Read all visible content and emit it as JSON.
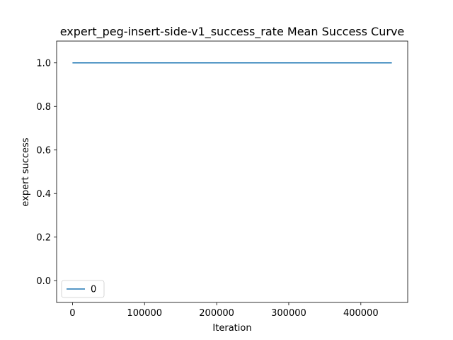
{
  "chart_data": {
    "type": "line",
    "title": "expert_peg-insert-side-v1_success_rate Mean Success Curve",
    "xlabel": "Iteration",
    "ylabel": "expert success",
    "xlim": [
      -22000,
      465000
    ],
    "ylim": [
      -0.1,
      1.1
    ],
    "xticks": [
      0,
      100000,
      200000,
      300000,
      400000
    ],
    "xtick_labels": [
      "0",
      "100000",
      "200000",
      "300000",
      "400000"
    ],
    "yticks": [
      0.0,
      0.2,
      0.4,
      0.6,
      0.8,
      1.0
    ],
    "ytick_labels": [
      "0.0",
      "0.2",
      "0.4",
      "0.6",
      "0.8",
      "1.0"
    ],
    "grid": false,
    "legend_position": "lower-left",
    "series": [
      {
        "name": "0",
        "color": "#1f77b4",
        "x": [
          0,
          100000,
          200000,
          300000,
          400000,
          443000
        ],
        "y": [
          1.0,
          1.0,
          1.0,
          1.0,
          1.0,
          1.0
        ]
      }
    ]
  }
}
